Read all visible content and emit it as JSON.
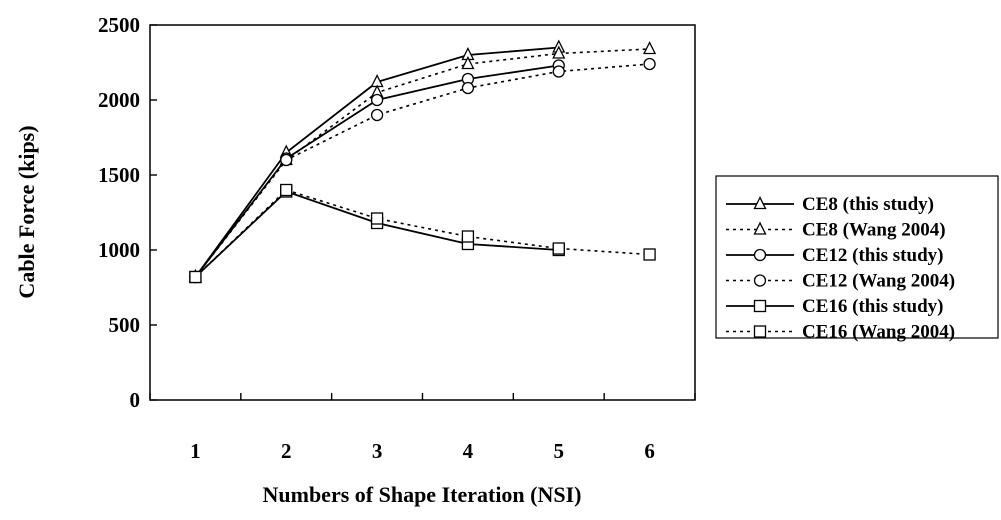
{
  "chart_data": {
    "type": "line",
    "title": "",
    "xlabel": "Numbers of Shape Iteration (NSI)",
    "ylabel": "Cable Force (kips)",
    "x": [
      1,
      2,
      3,
      4,
      5,
      6
    ],
    "xlim": [
      0.5,
      6.5
    ],
    "ylim": [
      0,
      2500
    ],
    "yticks": [
      0,
      500,
      1000,
      1500,
      2000,
      2500
    ],
    "legend_position": "right",
    "grid": false,
    "series": [
      {
        "name": "CE8 (this study)",
        "marker": "triangle",
        "dash": "solid",
        "values": [
          820,
          1650,
          2120,
          2300,
          2350,
          null
        ]
      },
      {
        "name": "CE8 (Wang 2004)",
        "marker": "triangle",
        "dash": "dotted",
        "values": [
          820,
          1600,
          2050,
          2240,
          2310,
          2340
        ]
      },
      {
        "name": "CE12 (this study)",
        "marker": "circle",
        "dash": "solid",
        "values": [
          820,
          1610,
          2000,
          2140,
          2230,
          null
        ]
      },
      {
        "name": "CE12 (Wang 2004)",
        "marker": "circle",
        "dash": "dotted",
        "values": [
          820,
          1600,
          1900,
          2080,
          2190,
          2240
        ]
      },
      {
        "name": "CE16 (this study)",
        "marker": "square",
        "dash": "solid",
        "values": [
          820,
          1390,
          1180,
          1040,
          1000,
          null
        ]
      },
      {
        "name": "CE16 (Wang 2004)",
        "marker": "square",
        "dash": "dotted",
        "values": [
          820,
          1400,
          1210,
          1090,
          1010,
          970
        ]
      }
    ]
  }
}
